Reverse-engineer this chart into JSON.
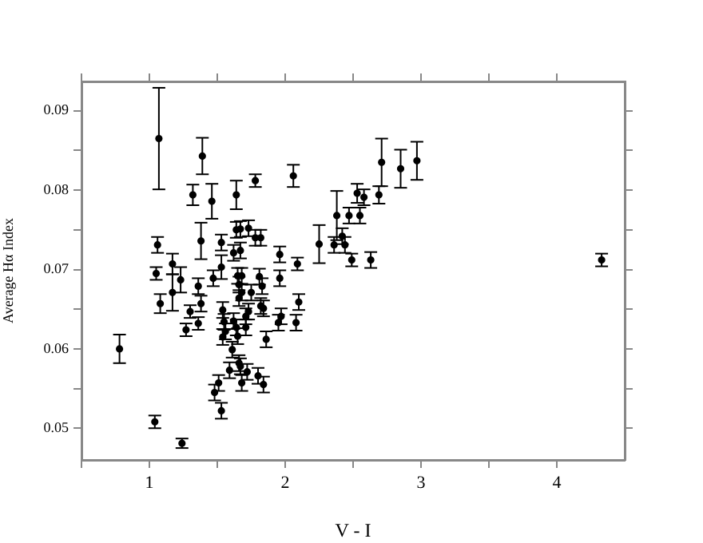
{
  "chart_data": {
    "type": "scatter",
    "xlabel": "V - I",
    "ylabel": "Average Hα Index",
    "xlim": [
      0.5,
      4.5
    ],
    "ylim": [
      0.046,
      0.0937
    ],
    "xticks": [
      {
        "value": 0.5,
        "label": null
      },
      1,
      {
        "value": 1.5,
        "label": null
      },
      2,
      {
        "value": 2.5,
        "label": null
      },
      3,
      {
        "value": 3.5,
        "label": null
      },
      4
    ],
    "yticks": [
      {
        "value": 0.05,
        "label": "0.05"
      },
      {
        "value": 0.055,
        "label": null
      },
      {
        "value": 0.06,
        "label": "0.06"
      },
      {
        "value": 0.065,
        "label": null
      },
      {
        "value": 0.07,
        "label": "0.07"
      },
      {
        "value": 0.075,
        "label": null
      },
      {
        "value": 0.08,
        "label": "0.08"
      },
      {
        "value": 0.085,
        "label": null
      },
      {
        "value": 0.09,
        "label": "0.09"
      }
    ],
    "grid": false,
    "legend": false,
    "marker": "circle",
    "series": [
      {
        "color": "#000000",
        "x": [
          1.07,
          1.39,
          1.32,
          1.46,
          1.78,
          1.64,
          1.06,
          1.05,
          1.08,
          1.17,
          1.17,
          1.23,
          1.27,
          1.3,
          1.36,
          1.38,
          1.36,
          1.38,
          1.47,
          1.53,
          1.53,
          1.54,
          1.55,
          1.54,
          1.56,
          1.61,
          1.66,
          1.67,
          1.59,
          1.72,
          1.68,
          1.51,
          1.48,
          1.53,
          1.04,
          1.24,
          0.78,
          1.62,
          1.64,
          1.67,
          1.73,
          1.67,
          1.65,
          1.68,
          1.66,
          1.68,
          1.66,
          1.73,
          1.71,
          1.62,
          1.64,
          1.71,
          1.65,
          1.75,
          1.78,
          1.82,
          1.81,
          1.83,
          1.82,
          1.84,
          1.86,
          1.8,
          1.84,
          1.96,
          1.96,
          1.95,
          1.97,
          2.06,
          2.38,
          2.47,
          2.53,
          2.58,
          2.55,
          2.69,
          2.71,
          2.85,
          2.97,
          2.25,
          2.36,
          2.42,
          2.44,
          2.49,
          2.63,
          2.09,
          2.1,
          2.08,
          4.33
        ],
        "values": [
          0.0865,
          0.0843,
          0.0794,
          0.0786,
          0.0812,
          0.0794,
          0.0731,
          0.0695,
          0.0657,
          0.0707,
          0.0671,
          0.0687,
          0.0624,
          0.0647,
          0.0632,
          0.0657,
          0.0679,
          0.0736,
          0.0689,
          0.0734,
          0.0703,
          0.0649,
          0.0634,
          0.0615,
          0.0622,
          0.0599,
          0.0582,
          0.0578,
          0.0573,
          0.0571,
          0.0557,
          0.0557,
          0.0545,
          0.0522,
          0.0508,
          0.0481,
          0.06,
          0.0721,
          0.075,
          0.0751,
          0.0752,
          0.0724,
          0.0692,
          0.0692,
          0.0681,
          0.0671,
          0.0664,
          0.0647,
          0.0641,
          0.0635,
          0.0627,
          0.0627,
          0.0616,
          0.0671,
          0.074,
          0.074,
          0.0691,
          0.0679,
          0.0654,
          0.0651,
          0.0612,
          0.0566,
          0.0555,
          0.0719,
          0.0689,
          0.0633,
          0.0641,
          0.0818,
          0.0768,
          0.0768,
          0.0796,
          0.0791,
          0.0768,
          0.0794,
          0.0835,
          0.0827,
          0.0837,
          0.0732,
          0.0731,
          0.0742,
          0.0731,
          0.0712,
          0.0712,
          0.0707,
          0.0659,
          0.0633,
          0.0712
        ],
        "errors": [
          0.0064,
          0.0023,
          0.0013,
          0.0022,
          0.0008,
          0.0018,
          0.001,
          0.0008,
          0.0012,
          0.0013,
          0.0023,
          0.0016,
          0.0008,
          0.0008,
          0.0008,
          0.001,
          0.001,
          0.0023,
          0.001,
          0.001,
          0.0015,
          0.001,
          0.001,
          0.001,
          0.001,
          0.001,
          0.001,
          0.001,
          0.001,
          0.001,
          0.001,
          0.001,
          0.001,
          0.001,
          0.0008,
          0.0006,
          0.0018,
          0.001,
          0.001,
          0.001,
          0.001,
          0.001,
          0.001,
          0.001,
          0.001,
          0.001,
          0.001,
          0.001,
          0.001,
          0.001,
          0.001,
          0.001,
          0.001,
          0.001,
          0.001,
          0.001,
          0.001,
          0.001,
          0.001,
          0.001,
          0.001,
          0.001,
          0.001,
          0.001,
          0.001,
          0.001,
          0.001,
          0.0014,
          0.0031,
          0.001,
          0.0012,
          0.001,
          0.001,
          0.0011,
          0.003,
          0.0024,
          0.0024,
          0.0024,
          0.001,
          0.001,
          0.001,
          0.0008,
          0.001,
          0.0008,
          0.001,
          0.001,
          0.0008
        ]
      }
    ]
  }
}
